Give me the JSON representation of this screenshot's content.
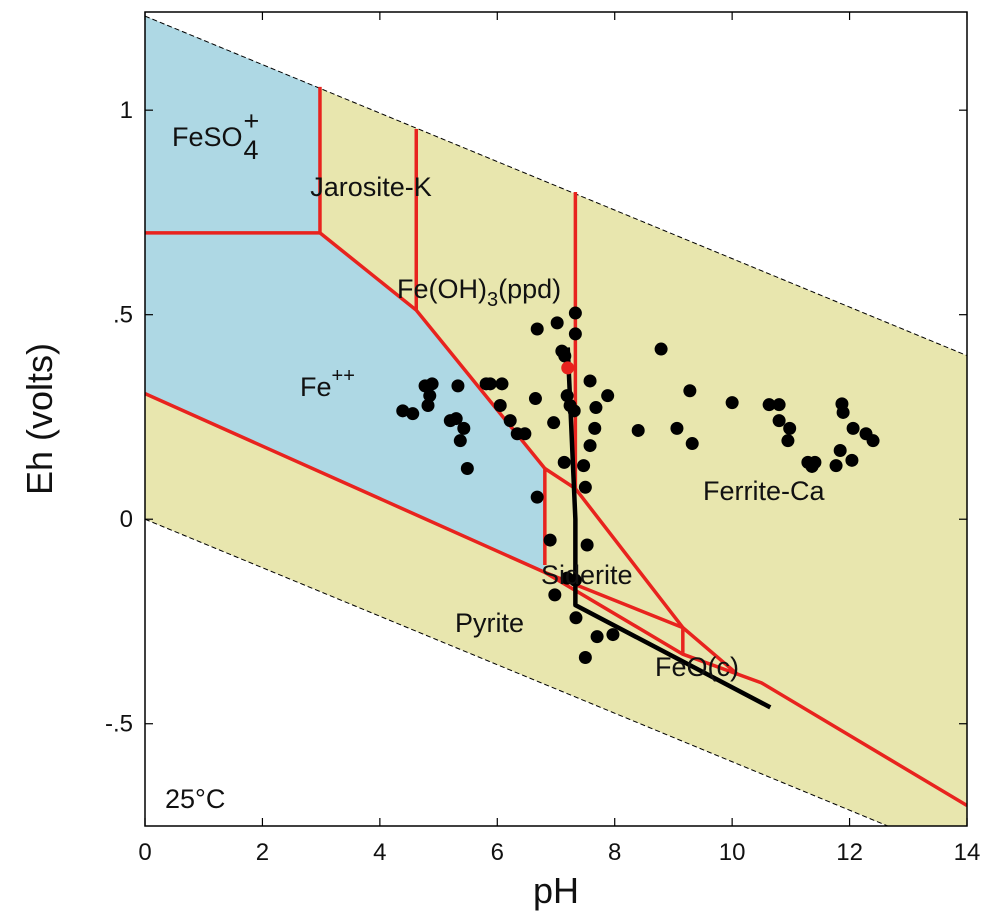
{
  "chart_data": {
    "type": "scatter",
    "xlabel": "pH",
    "ylabel": "Eh (volts)",
    "xlim": [
      0,
      14
    ],
    "ylim": [
      -0.75,
      1.24
    ],
    "xticks": [
      0,
      2,
      4,
      6,
      8,
      10,
      12,
      14
    ],
    "yticks": [
      {
        "value": -0.5,
        "label": "-.5"
      },
      0,
      {
        "value": 0.5,
        "label": ".5"
      },
      1
    ],
    "regions": [
      {
        "color": "#e8e6ae",
        "points": [
          [
            0,
            1.23
          ],
          [
            14,
            0.4
          ],
          [
            14,
            -0.83
          ],
          [
            0,
            0
          ]
        ]
      },
      {
        "color": "#aed8e4",
        "points": [
          [
            0,
            1.23
          ],
          [
            2.98,
            1.054
          ],
          [
            2.98,
            0.7
          ],
          [
            4.62,
            0.511
          ],
          [
            6.81,
            0.124
          ],
          [
            6.81,
            -0.13
          ],
          [
            0,
            0.307
          ]
        ]
      }
    ],
    "water_lines": {
      "color": "#000000",
      "lines": [
        [
          [
            0,
            1.23
          ],
          [
            14,
            0.4
          ]
        ],
        [
          [
            0,
            0
          ],
          [
            14,
            -0.83
          ]
        ]
      ]
    },
    "boundaries": {
      "color": "#e8231e",
      "lines": [
        [
          [
            0,
            0.7
          ],
          [
            2.98,
            0.7
          ]
        ],
        [
          [
            2.98,
            1.057
          ],
          [
            2.98,
            0.7
          ],
          [
            4.62,
            0.511
          ],
          [
            6.81,
            0.124
          ],
          [
            6.81,
            -0.112
          ]
        ],
        [
          [
            4.62,
            0.954
          ],
          [
            4.62,
            0.511
          ]
        ],
        [
          [
            7.33,
            0.8
          ],
          [
            7.33,
            0.075
          ]
        ],
        [
          [
            6.81,
            0.124
          ],
          [
            7.33,
            0.075
          ],
          [
            9.16,
            -0.265
          ],
          [
            10.1,
            -0.38
          ]
        ],
        [
          [
            0,
            0.307
          ],
          [
            6.81,
            -0.13
          ],
          [
            9.16,
            -0.265
          ],
          [
            9.16,
            -0.33
          ]
        ],
        [
          [
            6.81,
            -0.13
          ],
          [
            9.16,
            -0.33
          ],
          [
            10.5,
            -0.4
          ],
          [
            14,
            -0.7
          ]
        ]
      ]
    },
    "path": {
      "color": "#000000",
      "points": [
        [
          7.2,
          0.42
        ],
        [
          7.33,
          0.0
        ],
        [
          7.33,
          -0.21
        ],
        [
          10.65,
          -0.46
        ]
      ]
    },
    "series": [
      {
        "color": "#000000",
        "x": [
          4.39,
          4.56,
          4.77,
          4.89,
          4.85,
          4.82,
          5.2,
          5.3,
          5.33,
          5.43,
          5.37,
          5.49,
          5.81,
          5.88,
          6.08,
          6.05,
          6.22,
          6.34,
          6.47,
          6.68,
          7.02,
          7.33,
          7.33,
          7.1,
          7.15,
          6.65,
          6.96,
          7.19,
          7.24,
          7.31,
          7.58,
          7.68,
          7.66,
          7.88,
          7.58,
          7.14,
          7.47,
          7.5,
          6.68,
          6.9,
          7.53,
          7.19,
          7.33,
          6.98,
          7.34,
          7.7,
          7.97,
          7.5,
          8.4,
          8.79,
          9.06,
          9.28,
          9.32,
          10.0,
          10.63,
          10.8,
          10.8,
          10.98,
          10.95,
          11.29,
          11.36,
          11.41,
          11.87,
          11.89,
          12.06,
          11.84,
          11.77,
          12.04,
          12.28,
          12.4
        ],
        "y": [
          0.265,
          0.258,
          0.326,
          0.331,
          0.302,
          0.278,
          0.241,
          0.246,
          0.326,
          0.222,
          0.192,
          0.124,
          0.331,
          0.331,
          0.331,
          0.278,
          0.241,
          0.209,
          0.209,
          0.465,
          0.48,
          0.504,
          0.453,
          0.411,
          0.399,
          0.295,
          0.236,
          0.302,
          0.278,
          0.265,
          0.338,
          0.273,
          0.222,
          0.302,
          0.18,
          0.139,
          0.131,
          0.078,
          0.054,
          -0.051,
          -0.063,
          -0.144,
          -0.149,
          -0.185,
          -0.241,
          -0.287,
          -0.282,
          -0.338,
          0.217,
          0.416,
          0.222,
          0.314,
          0.185,
          0.285,
          0.28,
          0.28,
          0.241,
          0.222,
          0.192,
          0.139,
          0.129,
          0.139,
          0.282,
          0.261,
          0.222,
          0.168,
          0.131,
          0.144,
          0.209,
          0.192
        ]
      },
      {
        "color": "#e8231e",
        "x": [
          7.2
        ],
        "y": [
          0.37
        ]
      }
    ],
    "labels": [
      {
        "text": "FeSO",
        "sub": "4",
        "sup": "+"
      },
      {
        "text": "Jarosite-K"
      },
      {
        "text": "Fe(OH)",
        "sub": "3",
        "after": "(ppd)"
      },
      {
        "text": "Fe",
        "sup": "++"
      },
      {
        "text": "Ferrite-Ca"
      },
      {
        "text": "Siderite"
      },
      {
        "text": "Pyrite"
      },
      {
        "text": "FeO(c)"
      },
      {
        "text": "25°C"
      }
    ]
  }
}
